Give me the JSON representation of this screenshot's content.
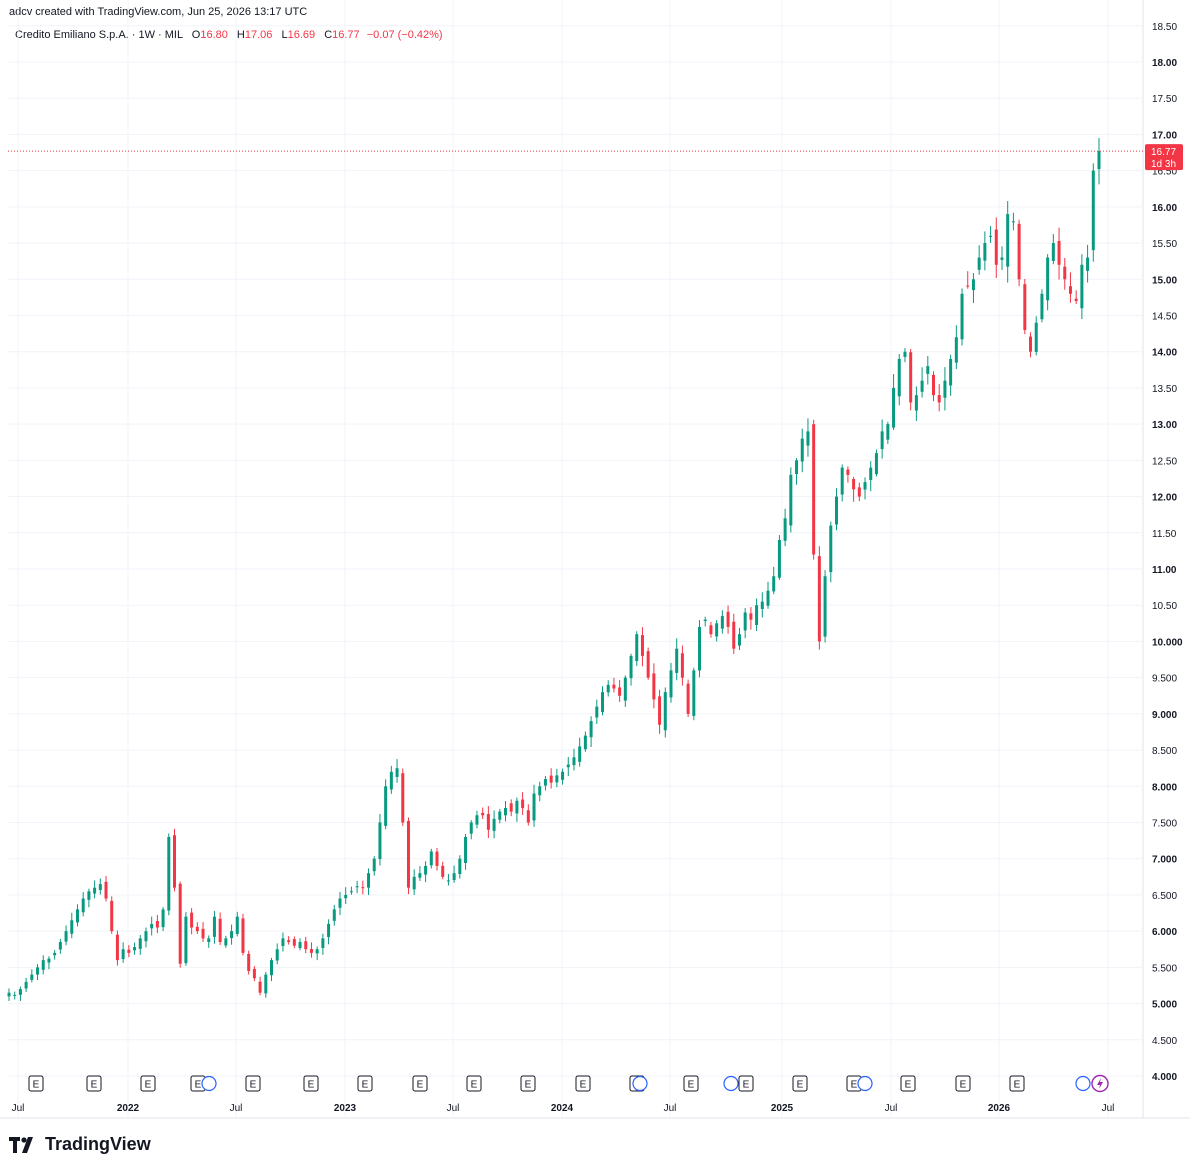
{
  "header": {
    "credit": "adcv created with TradingView.com, Jun 25, 2026 13:17 UTC"
  },
  "legend": {
    "symbol": "Credito Emiliano S.p.A. · 1W · MIL",
    "o_label": "O",
    "o_value": "16.80",
    "h_label": "H",
    "h_value": "17.06",
    "l_label": "L",
    "l_value": "16.69",
    "c_label": "C",
    "c_value": "16.77",
    "change": "−0.07 (−0.42%)"
  },
  "price_tag": {
    "price": "16.77",
    "countdown": "1d 3h"
  },
  "footer": {
    "brand": "TradingView"
  },
  "colors": {
    "up": "#089981",
    "down": "#f23645",
    "grid": "#f0f3fa"
  },
  "event_icons": [
    "E",
    "E",
    "E",
    "E",
    "E",
    "E",
    "E",
    "E",
    "E",
    "E",
    "E",
    "E",
    "E",
    "E",
    "E",
    "E",
    "E",
    "E",
    "E"
  ],
  "chart_data": {
    "type": "candlestick",
    "title": "Credito Emiliano S.p.A. · 1W · MIL",
    "ylim": [
      4.0,
      18.5
    ],
    "y_ticks": [
      {
        "value": 4.0,
        "label": "4.000",
        "bold": true
      },
      {
        "value": 4.5,
        "label": "4.500",
        "bold": false
      },
      {
        "value": 5.0,
        "label": "5.000",
        "bold": true
      },
      {
        "value": 5.5,
        "label": "5.500",
        "bold": false
      },
      {
        "value": 6.0,
        "label": "6.000",
        "bold": true
      },
      {
        "value": 6.5,
        "label": "6.500",
        "bold": false
      },
      {
        "value": 7.0,
        "label": "7.000",
        "bold": true
      },
      {
        "value": 7.5,
        "label": "7.500",
        "bold": false
      },
      {
        "value": 8.0,
        "label": "8.000",
        "bold": true
      },
      {
        "value": 8.5,
        "label": "8.500",
        "bold": false
      },
      {
        "value": 9.0,
        "label": "9.000",
        "bold": true
      },
      {
        "value": 9.5,
        "label": "9.500",
        "bold": false
      },
      {
        "value": 10.0,
        "label": "10.000",
        "bold": true
      },
      {
        "value": 10.5,
        "label": "10.50",
        "bold": false
      },
      {
        "value": 11.0,
        "label": "11.00",
        "bold": true
      },
      {
        "value": 11.5,
        "label": "11.50",
        "bold": false
      },
      {
        "value": 12.0,
        "label": "12.00",
        "bold": true
      },
      {
        "value": 12.5,
        "label": "12.50",
        "bold": false
      },
      {
        "value": 13.0,
        "label": "13.00",
        "bold": true
      },
      {
        "value": 13.5,
        "label": "13.50",
        "bold": false
      },
      {
        "value": 14.0,
        "label": "14.00",
        "bold": true
      },
      {
        "value": 14.5,
        "label": "14.50",
        "bold": false
      },
      {
        "value": 15.0,
        "label": "15.00",
        "bold": true
      },
      {
        "value": 15.5,
        "label": "15.50",
        "bold": false
      },
      {
        "value": 16.0,
        "label": "16.00",
        "bold": true
      },
      {
        "value": 16.5,
        "label": "16.50",
        "bold": false
      },
      {
        "value": 17.0,
        "label": "17.00",
        "bold": true
      },
      {
        "value": 17.5,
        "label": "17.50",
        "bold": false
      },
      {
        "value": 18.0,
        "label": "18.00",
        "bold": true
      },
      {
        "value": 18.5,
        "label": "18.50",
        "bold": false
      }
    ],
    "x_ticks": [
      {
        "label": "Jul",
        "bold": false
      },
      {
        "label": "2022",
        "bold": true
      },
      {
        "label": "Jul",
        "bold": false
      },
      {
        "label": "2023",
        "bold": true
      },
      {
        "label": "Jul",
        "bold": false
      },
      {
        "label": "2024",
        "bold": true
      },
      {
        "label": "Jul",
        "bold": false
      },
      {
        "label": "2025",
        "bold": true
      },
      {
        "label": "Jul",
        "bold": false
      },
      {
        "label": "2026",
        "bold": true
      },
      {
        "label": "Jul",
        "bold": false
      }
    ],
    "last_close": 16.77,
    "weekly_close": [
      5.15,
      5.12,
      5.2,
      5.3,
      5.4,
      5.5,
      5.6,
      5.62,
      5.7,
      5.85,
      6.0,
      6.15,
      6.3,
      6.45,
      6.55,
      6.6,
      6.65,
      6.45,
      6.0,
      5.6,
      5.75,
      5.7,
      5.78,
      5.9,
      6.0,
      6.1,
      6.05,
      6.3,
      7.3,
      6.6,
      5.55,
      6.2,
      6.05,
      6.0,
      5.9,
      5.9,
      6.2,
      5.85,
      5.9,
      6.0,
      6.2,
      5.7,
      5.45,
      5.35,
      5.15,
      5.4,
      5.6,
      5.75,
      5.9,
      5.85,
      5.8,
      5.85,
      5.75,
      5.7,
      5.75,
      5.9,
      6.1,
      6.3,
      6.45,
      6.5,
      6.55,
      6.62,
      6.6,
      6.8,
      7.0,
      7.5,
      8.0,
      8.2,
      8.25,
      7.5,
      6.6,
      6.75,
      6.8,
      6.9,
      7.1,
      6.9,
      6.75,
      6.7,
      6.8,
      7.0,
      7.3,
      7.5,
      7.6,
      7.6,
      7.4,
      7.55,
      7.65,
      7.7,
      7.65,
      7.8,
      7.7,
      7.5,
      7.9,
      8.0,
      8.1,
      8.05,
      8.15,
      8.2,
      8.3,
      8.4,
      8.55,
      8.7,
      8.9,
      9.1,
      9.3,
      9.4,
      9.35,
      9.25,
      9.5,
      9.8,
      10.1,
      9.8,
      9.5,
      9.2,
      8.85,
      9.3,
      9.6,
      9.9,
      9.5,
      9.0,
      9.6,
      10.2,
      10.3,
      10.1,
      10.25,
      10.35,
      10.2,
      9.9,
      10.1,
      10.4,
      10.3,
      10.5,
      10.55,
      10.7,
      10.9,
      11.4,
      11.7,
      12.3,
      12.5,
      12.8,
      12.9,
      11.2,
      10.0,
      10.9,
      11.6,
      12.0,
      12.4,
      12.3,
      12.1,
      12.0,
      12.2,
      12.4,
      12.6,
      12.9,
      13.0,
      13.5,
      13.9,
      14.0,
      13.3,
      13.4,
      13.6,
      13.8,
      13.4,
      13.3,
      13.6,
      13.9,
      14.2,
      14.8,
      14.9,
      15.0,
      15.3,
      15.5,
      15.6,
      15.2,
      15.3,
      15.9,
      15.8,
      15.0,
      14.3,
      14.0,
      14.4,
      14.8,
      15.3,
      15.5,
      15.2,
      15.0,
      14.8,
      14.7,
      15.2,
      15.3,
      16.5,
      16.77
    ]
  }
}
